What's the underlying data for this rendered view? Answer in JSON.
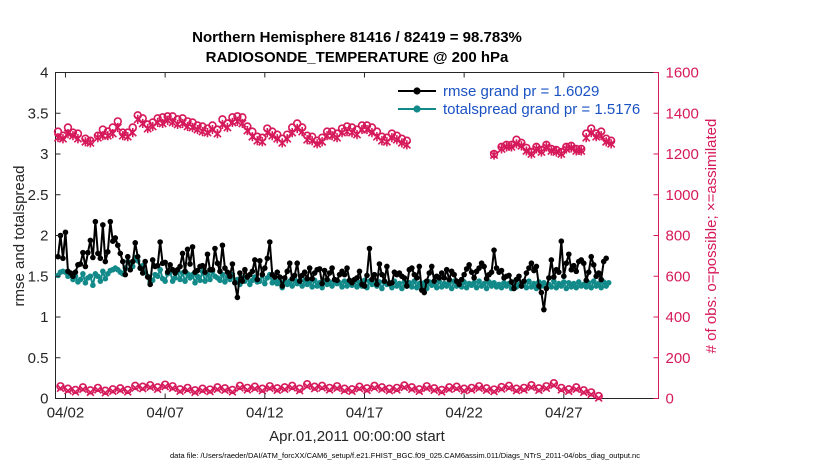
{
  "chart_data": {
    "type": "line",
    "title": [
      "Northern Hemisphere 81416 / 82419 = 98.783%",
      "RADIOSONDE_TEMPERATURE @ 200 hPa"
    ],
    "xlabel": "Apr.01,2011 00:00:00 start",
    "ylabel_left": "rmse and totalspread",
    "ylabel_right": "# of obs: o=possible; ×=assimilated",
    "footnote": "data file: /Users/raeder/DAI/ATM_forcXX/CAM6_setup/f.e21.FHIST_BGC.f09_025.CAM6assim.011/Diags_NTrS_2011-04/obs_diag_output.nc",
    "x_unit": "days since Apr.01,2011 00:00:00",
    "xlim": [
      0.5,
      30.75
    ],
    "ylim_left": [
      0,
      4
    ],
    "ylim_right": [
      0,
      1600
    ],
    "x_tick_labels": [
      "04/02",
      "04/07",
      "04/12",
      "04/17",
      "04/22",
      "04/27"
    ],
    "x_tick_values": [
      1,
      6,
      11,
      16,
      21,
      26
    ],
    "y_left_tick_labels": [
      "0",
      "0.5",
      "1",
      "1.5",
      "2",
      "2.5",
      "3",
      "3.5",
      "4"
    ],
    "y_right_tick_labels": [
      "0",
      "200",
      "400",
      "600",
      "800",
      "1000",
      "1200",
      "1400",
      "1600"
    ],
    "legend_placement": "top-right",
    "grid": false,
    "colors": {
      "rmse": "#000000",
      "totalspread": "#138a8a",
      "obs": "#d6195a",
      "legend_text": "#1a52c4"
    },
    "series": [
      {
        "name": "rmse grand pr = 1.6029",
        "axis": "left",
        "values": [
          1.74,
          2.0,
          1.72,
          2.04,
          1.56,
          1.54,
          1.5,
          1.55,
          1.64,
          1.65,
          1.79,
          1.62,
          1.79,
          1.94,
          1.73,
          2.17,
          1.78,
          1.72,
          2.13,
          1.68,
          1.8,
          2.17,
          1.93,
          1.97,
          1.88,
          1.78,
          1.68,
          1.52,
          1.74,
          1.58,
          1.68,
          1.91,
          1.74,
          1.6,
          1.54,
          1.68,
          1.49,
          1.4,
          1.7,
          1.62,
          1.63,
          1.92,
          1.66,
          1.67,
          1.55,
          1.64,
          1.58,
          1.54,
          1.58,
          1.62,
          1.78,
          1.56,
          1.83,
          1.65,
          1.86,
          1.55,
          1.57,
          1.62,
          1.63,
          1.55,
          1.77,
          1.58,
          1.58,
          1.84,
          1.66,
          1.56,
          1.88,
          1.6,
          1.55,
          1.5,
          1.65,
          1.42,
          1.24,
          1.54,
          1.44,
          1.58,
          1.49,
          1.52,
          1.56,
          1.7,
          1.46,
          1.69,
          1.52,
          1.6,
          1.72,
          1.92,
          1.52,
          1.49,
          1.55,
          1.49,
          1.38,
          1.48,
          1.56,
          1.66,
          1.47,
          1.51,
          1.66,
          1.44,
          1.51,
          1.55,
          1.47,
          1.6,
          1.47,
          1.54,
          1.58,
          1.59,
          1.41,
          1.57,
          1.46,
          1.54,
          1.6,
          1.46,
          1.45,
          1.52,
          1.56,
          1.52,
          1.6,
          1.45,
          1.42,
          1.46,
          1.48,
          1.56,
          1.4,
          1.38,
          1.51,
          1.84,
          1.46,
          1.52,
          1.4,
          1.65,
          1.52,
          1.44,
          1.62,
          1.41,
          1.42,
          1.55,
          1.52,
          1.54,
          1.5,
          1.48,
          1.38,
          1.58,
          1.6,
          1.52,
          1.48,
          1.62,
          1.33,
          1.3,
          1.44,
          1.54,
          1.62,
          1.44,
          1.5,
          1.48,
          1.54,
          1.48,
          1.58,
          1.46,
          1.56,
          1.52,
          1.44,
          1.4,
          1.46,
          1.52,
          1.59,
          1.64,
          1.55,
          1.48,
          1.56,
          1.6,
          1.66,
          1.62,
          1.47,
          1.52,
          1.55,
          1.82,
          1.6,
          1.55,
          1.57,
          1.48,
          1.5,
          1.51,
          1.43,
          1.35,
          1.46,
          1.5,
          1.38,
          1.44,
          1.54,
          1.6,
          1.66,
          1.57,
          1.62,
          1.38,
          1.3,
          1.09,
          1.35,
          1.48,
          1.7,
          1.49,
          1.58,
          1.55,
          1.93,
          1.5,
          1.66,
          1.77,
          1.58,
          1.63,
          1.56,
          1.68,
          1.7,
          1.66,
          1.45,
          1.55,
          1.74,
          1.64,
          1.5,
          1.54,
          1.46,
          1.68,
          1.72
        ],
        "x_start": 0.625,
        "x_step": 0.125
      },
      {
        "name": "totalspread grand pr = 1.5176",
        "axis": "left",
        "values": [
          1.51,
          1.55,
          1.56,
          1.55,
          1.5,
          1.52,
          1.46,
          1.5,
          1.43,
          1.46,
          1.53,
          1.42,
          1.48,
          1.5,
          1.39,
          1.53,
          1.5,
          1.44,
          1.56,
          1.47,
          1.53,
          1.57,
          1.58,
          1.6,
          1.58,
          1.55,
          1.53,
          1.6,
          1.68,
          1.65,
          1.62,
          1.73,
          1.69,
          1.6,
          1.63,
          1.55,
          1.5,
          1.43,
          1.45,
          1.52,
          1.5,
          1.58,
          1.47,
          1.44,
          1.53,
          1.56,
          1.44,
          1.48,
          1.56,
          1.46,
          1.54,
          1.44,
          1.53,
          1.48,
          1.52,
          1.42,
          1.5,
          1.45,
          1.56,
          1.44,
          1.52,
          1.46,
          1.56,
          1.5,
          1.48,
          1.45,
          1.52,
          1.43,
          1.49,
          1.46,
          1.52,
          1.42,
          1.46,
          1.4,
          1.48,
          1.44,
          1.5,
          1.4,
          1.45,
          1.49,
          1.43,
          1.44,
          1.52,
          1.41,
          1.48,
          1.52,
          1.42,
          1.45,
          1.41,
          1.44,
          1.36,
          1.43,
          1.4,
          1.44,
          1.38,
          1.46,
          1.41,
          1.44,
          1.38,
          1.45,
          1.4,
          1.43,
          1.37,
          1.45,
          1.38,
          1.42,
          1.36,
          1.44,
          1.4,
          1.43,
          1.38,
          1.44,
          1.41,
          1.42,
          1.37,
          1.44,
          1.38,
          1.42,
          1.39,
          1.44,
          1.37,
          1.42,
          1.38,
          1.45,
          1.36,
          1.44,
          1.4,
          1.41,
          1.38,
          1.43,
          1.35,
          1.43,
          1.4,
          1.42,
          1.36,
          1.44,
          1.38,
          1.41,
          1.35,
          1.43,
          1.38,
          1.42,
          1.37,
          1.44,
          1.36,
          1.41,
          1.38,
          1.42,
          1.35,
          1.43,
          1.39,
          1.4,
          1.36,
          1.44,
          1.37,
          1.41,
          1.38,
          1.42,
          1.35,
          1.44,
          1.38,
          1.4,
          1.37,
          1.43,
          1.36,
          1.41,
          1.39,
          1.42,
          1.36,
          1.44,
          1.38,
          1.41,
          1.35,
          1.43,
          1.38,
          1.42,
          1.37,
          1.4,
          1.36,
          1.42,
          1.38,
          1.41,
          1.35,
          1.43,
          1.37,
          1.4,
          1.38,
          1.42,
          1.36,
          1.44,
          1.37,
          1.41,
          1.35,
          1.43,
          1.38,
          1.42,
          1.36,
          1.4,
          1.37,
          1.44,
          1.36,
          1.41,
          1.38,
          1.43,
          1.35,
          1.42,
          1.37,
          1.41,
          1.36,
          1.43,
          1.38,
          1.4,
          1.37,
          1.42,
          1.36,
          1.44,
          1.38,
          1.41,
          1.36,
          1.43,
          1.38,
          1.42
        ],
        "x_start": 0.625,
        "x_step": 0.125
      },
      {
        "name": "obs possible (upper)",
        "axis": "right",
        "marker": "o",
        "values": [
          1310,
          1290,
          1330,
          1305,
          1300,
          1275,
          1265,
          1290,
          1320,
          1310,
          1330,
          1360,
          1305,
          1305,
          1330,
          1390,
          1375,
          1345,
          1355,
          1375,
          1380,
          1385,
          1385,
          1370,
          1375,
          1360,
          1355,
          1340,
          1335,
          1325,
          1340,
          1320,
          1370,
          1350,
          1380,
          1385,
          1380,
          1335,
          1310,
          1285,
          1280,
          1325,
          1310,
          1295,
          1275,
          1295,
          1330,
          1350,
          1330,
          1290,
          1285,
          1265,
          1280,
          1310,
          1310,
          1300,
          1325,
          1335,
          1330,
          1320,
          1340,
          1340,
          1330,
          1310,
          1285,
          1280,
          1300,
          1290,
          1275,
          1265,
          1200,
          1235,
          1245,
          1245,
          1270,
          1255,
          1230,
          1210,
          1235,
          1220,
          1245,
          1225,
          1220,
          1210,
          1235,
          1240,
          1225,
          1225,
          1300,
          1325,
          1300,
          1310,
          1275,
          1265
        ],
        "x_values": [
          0.625,
          0.875,
          1.125,
          1.375,
          1.625,
          2.0,
          2.25,
          2.625,
          2.875,
          3.125,
          3.375,
          3.625,
          3.875,
          4.125,
          4.375,
          4.625,
          4.875,
          5.125,
          5.375,
          5.625,
          5.875,
          6.125,
          6.375,
          6.625,
          6.875,
          7.125,
          7.375,
          7.625,
          7.875,
          8.125,
          8.375,
          8.625,
          8.875,
          9.125,
          9.375,
          9.625,
          9.875,
          10.125,
          10.375,
          10.625,
          10.875,
          11.125,
          11.375,
          11.625,
          11.875,
          12.125,
          12.375,
          12.625,
          12.875,
          13.125,
          13.375,
          13.625,
          13.875,
          14.125,
          14.375,
          14.625,
          14.875,
          15.125,
          15.375,
          15.625,
          15.875,
          16.125,
          16.375,
          16.625,
          16.875,
          17.125,
          17.375,
          17.625,
          17.875,
          18.125,
          22.5,
          22.875,
          23.125,
          23.375,
          23.625,
          23.875,
          24.125,
          24.375,
          24.625,
          24.875,
          25.125,
          25.375,
          25.625,
          25.875,
          26.125,
          26.375,
          26.625,
          26.875,
          27.125,
          27.375,
          27.625,
          27.875,
          28.125,
          28.375
        ]
      },
      {
        "name": "obs assimilated (upper)",
        "axis": "right",
        "marker": "x",
        "values": [
          1280,
          1275,
          1300,
          1290,
          1275,
          1260,
          1255,
          1280,
          1290,
          1290,
          1300,
          1330,
          1290,
          1285,
          1305,
          1370,
          1350,
          1325,
          1335,
          1355,
          1350,
          1365,
          1355,
          1345,
          1350,
          1335,
          1330,
          1320,
          1310,
          1305,
          1320,
          1300,
          1345,
          1330,
          1355,
          1360,
          1350,
          1315,
          1285,
          1265,
          1260,
          1305,
          1290,
          1275,
          1255,
          1275,
          1305,
          1325,
          1310,
          1270,
          1265,
          1250,
          1260,
          1290,
          1290,
          1280,
          1305,
          1310,
          1305,
          1295,
          1320,
          1320,
          1305,
          1285,
          1265,
          1260,
          1280,
          1270,
          1255,
          1245,
          1195,
          1225,
          1235,
          1235,
          1250,
          1240,
          1215,
          1200,
          1225,
          1210,
          1235,
          1215,
          1210,
          1200,
          1225,
          1230,
          1215,
          1215,
          1280,
          1305,
          1285,
          1290,
          1260,
          1250
        ],
        "x_values": [
          0.625,
          0.875,
          1.125,
          1.375,
          1.625,
          2.0,
          2.25,
          2.625,
          2.875,
          3.125,
          3.375,
          3.625,
          3.875,
          4.125,
          4.375,
          4.625,
          4.875,
          5.125,
          5.375,
          5.625,
          5.875,
          6.125,
          6.375,
          6.625,
          6.875,
          7.125,
          7.375,
          7.625,
          7.875,
          8.125,
          8.375,
          8.625,
          8.875,
          9.125,
          9.375,
          9.625,
          9.875,
          10.125,
          10.375,
          10.625,
          10.875,
          11.125,
          11.375,
          11.625,
          11.875,
          12.125,
          12.375,
          12.625,
          12.875,
          13.125,
          13.375,
          13.625,
          13.875,
          14.125,
          14.375,
          14.625,
          14.875,
          15.125,
          15.375,
          15.625,
          15.875,
          16.125,
          16.375,
          16.625,
          16.875,
          17.125,
          17.375,
          17.625,
          17.875,
          18.125,
          22.5,
          22.875,
          23.125,
          23.375,
          23.625,
          23.875,
          24.125,
          24.375,
          24.625,
          24.875,
          25.125,
          25.375,
          25.625,
          25.875,
          26.125,
          26.375,
          26.625,
          26.875,
          27.125,
          27.375,
          27.625,
          27.875,
          28.125,
          28.375
        ]
      },
      {
        "name": "obs possible (lower)",
        "axis": "right",
        "marker": "o",
        "values": [
          60,
          48,
          42,
          55,
          40,
          52,
          38,
          45,
          50,
          42,
          62,
          58,
          65,
          55,
          68,
          60,
          45,
          52,
          40,
          48,
          44,
          55,
          50,
          42,
          62,
          52,
          58,
          48,
          60,
          50,
          55,
          62,
          48,
          70,
          58,
          62,
          52,
          60,
          48,
          45,
          58,
          50,
          62,
          55,
          48,
          52,
          64,
          55,
          45,
          60,
          50,
          42,
          55,
          58,
          48,
          52,
          60,
          50,
          44,
          56,
          62,
          48,
          52,
          65,
          50,
          60,
          75,
          52,
          45,
          55,
          40,
          30,
          12
        ],
        "x_values": [
          0.75,
          1.125,
          1.5,
          1.875,
          2.25,
          2.625,
          3.0,
          3.375,
          3.75,
          4.125,
          4.5,
          4.875,
          5.25,
          5.625,
          6.0,
          6.375,
          6.75,
          7.125,
          7.5,
          7.875,
          8.25,
          8.625,
          9.0,
          9.375,
          9.75,
          10.125,
          10.5,
          10.875,
          11.25,
          11.625,
          12.0,
          12.375,
          12.75,
          13.125,
          13.5,
          13.875,
          14.25,
          14.625,
          15.0,
          15.375,
          15.75,
          16.125,
          16.5,
          16.875,
          17.25,
          17.625,
          18.0,
          18.375,
          18.75,
          19.125,
          19.5,
          19.875,
          20.25,
          20.625,
          21.0,
          21.375,
          21.75,
          22.125,
          22.5,
          22.875,
          23.25,
          23.625,
          24.0,
          24.375,
          24.75,
          25.125,
          25.5,
          25.875,
          26.25,
          26.625,
          27.0,
          27.375,
          27.75
        ]
      }
    ]
  }
}
